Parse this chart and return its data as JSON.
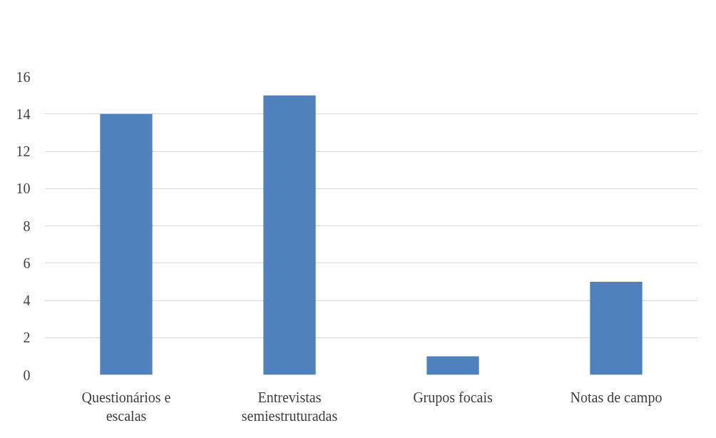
{
  "chart_data": {
    "type": "bar",
    "categories": [
      "Questionários e\nescalas",
      "Entrevistas\nsemiestruturadas",
      "Grupos focais",
      "Notas de campo"
    ],
    "values": [
      14,
      15,
      1,
      5
    ],
    "color": "#4f81bd",
    "ylim": [
      0,
      16
    ],
    "yticks": [
      0,
      2,
      4,
      6,
      8,
      10,
      12,
      14,
      16
    ],
    "grid": "y"
  }
}
